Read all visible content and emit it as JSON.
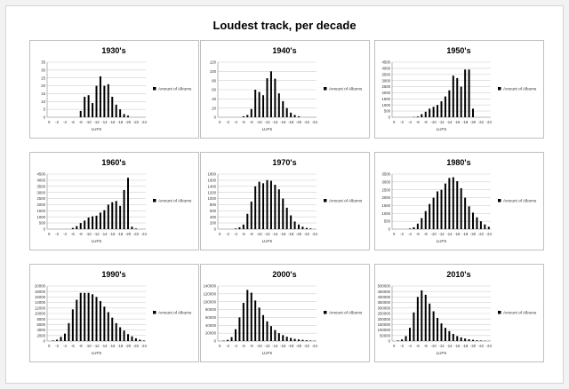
{
  "page": {
    "title": "Loudest track, per decade"
  },
  "chart_data": [
    {
      "type": "bar",
      "title": "1930's",
      "xlabel": "LUFS",
      "ylabel": "",
      "legend": "Amount of Albums",
      "legend_position": "right",
      "ylim": [
        0,
        35
      ],
      "yticks": [
        0,
        5,
        10,
        15,
        20,
        25,
        30,
        35
      ],
      "grid": true,
      "x": [
        0,
        -1,
        -2,
        -3,
        -4,
        -5,
        -6,
        -7,
        -8,
        -9,
        -10,
        -11,
        -12,
        -13,
        -14,
        -15,
        -16,
        -17,
        -18,
        -19,
        -20,
        -21,
        -22,
        -23,
        -24
      ],
      "xtick_labels": [
        "0",
        "-2",
        "-4",
        "-6",
        "-8",
        "-10",
        "-12",
        "-14",
        "-16",
        "-18",
        "-20",
        "-22",
        "-24"
      ],
      "values": [
        0,
        0,
        0,
        0,
        0,
        0,
        0,
        0,
        4,
        13,
        14,
        9,
        20,
        26,
        20,
        21,
        13,
        8,
        5,
        2,
        1,
        0,
        0,
        0,
        0
      ]
    },
    {
      "type": "bar",
      "title": "1940's",
      "xlabel": "LUFS",
      "ylabel": "",
      "legend": "Amount of Albums",
      "legend_position": "right",
      "ylim": [
        0,
        120
      ],
      "yticks": [
        0,
        20,
        40,
        60,
        80,
        100,
        120
      ],
      "grid": true,
      "x": [
        0,
        -1,
        -2,
        -3,
        -4,
        -5,
        -6,
        -7,
        -8,
        -9,
        -10,
        -11,
        -12,
        -13,
        -14,
        -15,
        -16,
        -17,
        -18,
        -19,
        -20,
        -21,
        -22,
        -23,
        -24
      ],
      "xtick_labels": [
        "0",
        "-2",
        "-4",
        "-6",
        "-8",
        "-10",
        "-12",
        "-14",
        "-16",
        "-18",
        "-20",
        "-22",
        "-24"
      ],
      "values": [
        0,
        0,
        0,
        0,
        0,
        0,
        2,
        5,
        18,
        60,
        55,
        48,
        85,
        100,
        84,
        52,
        35,
        20,
        10,
        5,
        2,
        0,
        0,
        0,
        0
      ]
    },
    {
      "type": "bar",
      "title": "1950's",
      "xlabel": "LUFS",
      "ylabel": "",
      "legend": "Amount of Albums",
      "legend_position": "right",
      "ylim": [
        0,
        4500
      ],
      "yticks": [
        0,
        500,
        1000,
        1500,
        2000,
        2500,
        3000,
        3500,
        4000,
        4500
      ],
      "grid": true,
      "x": [
        0,
        -1,
        -2,
        -3,
        -4,
        -5,
        -6,
        -7,
        -8,
        -9,
        -10,
        -11,
        -12,
        -13,
        -14,
        -15,
        -16,
        -17,
        -18,
        -19,
        -20,
        -21,
        -22,
        -23,
        -24
      ],
      "xtick_labels": [
        "0",
        "-2",
        "-4",
        "-6",
        "-8",
        "-10",
        "-12",
        "-14",
        "-16",
        "-18",
        "-20",
        "-22",
        "-24"
      ],
      "values": [
        0,
        0,
        0,
        0,
        0,
        20,
        60,
        250,
        450,
        700,
        850,
        1000,
        1300,
        1700,
        2200,
        3400,
        3200,
        2500,
        3900,
        3900,
        700,
        0,
        0,
        0,
        0
      ]
    },
    {
      "type": "bar",
      "title": "1960's",
      "xlabel": "LUFS",
      "ylabel": "",
      "legend": "Amount of Albums",
      "legend_position": "right",
      "ylim": [
        0,
        4500
      ],
      "yticks": [
        0,
        500,
        1000,
        1500,
        2000,
        2500,
        3000,
        3500,
        4000,
        4500
      ],
      "grid": true,
      "x": [
        0,
        -1,
        -2,
        -3,
        -4,
        -5,
        -6,
        -7,
        -8,
        -9,
        -10,
        -11,
        -12,
        -13,
        -14,
        -15,
        -16,
        -17,
        -18,
        -19,
        -20,
        -21,
        -22,
        -23,
        -24
      ],
      "xtick_labels": [
        "0",
        "-2",
        "-4",
        "-6",
        "-8",
        "-10",
        "-12",
        "-14",
        "-16",
        "-18",
        "-20",
        "-22",
        "-24"
      ],
      "values": [
        0,
        0,
        0,
        0,
        0,
        0,
        100,
        250,
        500,
        700,
        950,
        1050,
        1100,
        1350,
        1550,
        2000,
        2200,
        2300,
        1900,
        3200,
        4200,
        200,
        50,
        0,
        0
      ]
    },
    {
      "type": "bar",
      "title": "1970's",
      "xlabel": "LUFS",
      "ylabel": "",
      "legend": "Amount of Albums",
      "legend_position": "right",
      "ylim": [
        0,
        1800
      ],
      "yticks": [
        0,
        200,
        400,
        600,
        800,
        1000,
        1200,
        1400,
        1600,
        1800
      ],
      "grid": true,
      "x": [
        0,
        -1,
        -2,
        -3,
        -4,
        -5,
        -6,
        -7,
        -8,
        -9,
        -10,
        -11,
        -12,
        -13,
        -14,
        -15,
        -16,
        -17,
        -18,
        -19,
        -20,
        -21,
        -22,
        -23,
        -24
      ],
      "xtick_labels": [
        "0",
        "-2",
        "-4",
        "-6",
        "-8",
        "-10",
        "-12",
        "-14",
        "-16",
        "-18",
        "-20",
        "-22",
        "-24"
      ],
      "values": [
        0,
        0,
        0,
        0,
        20,
        60,
        150,
        500,
        900,
        1400,
        1550,
        1500,
        1600,
        1580,
        1450,
        1300,
        1000,
        700,
        450,
        250,
        150,
        80,
        40,
        20,
        0
      ]
    },
    {
      "type": "bar",
      "title": "1980's",
      "xlabel": "LUFS",
      "ylabel": "",
      "legend": "Amount of Albums",
      "legend_position": "right",
      "ylim": [
        0,
        3500
      ],
      "yticks": [
        0,
        500,
        1000,
        1500,
        2000,
        2500,
        3000,
        3500
      ],
      "grid": true,
      "x": [
        0,
        -1,
        -2,
        -3,
        -4,
        -5,
        -6,
        -7,
        -8,
        -9,
        -10,
        -11,
        -12,
        -13,
        -14,
        -15,
        -16,
        -17,
        -18,
        -19,
        -20,
        -21,
        -22,
        -23,
        -24
      ],
      "xtick_labels": [
        "0",
        "-2",
        "-4",
        "-6",
        "-8",
        "-10",
        "-12",
        "-14",
        "-16",
        "-18",
        "-20",
        "-22",
        "-24"
      ],
      "values": [
        0,
        0,
        0,
        0,
        40,
        120,
        350,
        700,
        1150,
        1600,
        2000,
        2400,
        2500,
        2900,
        3250,
        3300,
        3050,
        2600,
        2000,
        1450,
        1050,
        750,
        500,
        300,
        150
      ]
    },
    {
      "type": "bar",
      "title": "1990's",
      "xlabel": "LUFS",
      "ylabel": "",
      "legend": "Amount of Albums",
      "legend_position": "right",
      "ylim": [
        0,
        20000
      ],
      "yticks": [
        0,
        2000,
        4000,
        6000,
        8000,
        10000,
        12000,
        14000,
        16000,
        18000,
        20000
      ],
      "grid": true,
      "x": [
        0,
        -1,
        -2,
        -3,
        -4,
        -5,
        -6,
        -7,
        -8,
        -9,
        -10,
        -11,
        -12,
        -13,
        -14,
        -15,
        -16,
        -17,
        -18,
        -19,
        -20,
        -21,
        -22,
        -23,
        -24
      ],
      "xtick_labels": [
        "0",
        "-2",
        "-4",
        "-6",
        "-8",
        "-10",
        "-12",
        "-14",
        "-16",
        "-18",
        "-20",
        "-22",
        "-24"
      ],
      "values": [
        0,
        200,
        500,
        1500,
        2700,
        6500,
        11500,
        15000,
        17500,
        17500,
        17500,
        17000,
        16000,
        14500,
        12500,
        10500,
        8500,
        6500,
        5000,
        3800,
        2500,
        1700,
        1000,
        500,
        200
      ]
    },
    {
      "type": "bar",
      "title": "2000's",
      "xlabel": "LUFS",
      "ylabel": "",
      "legend": "Amount of Albums",
      "legend_position": "right",
      "ylim": [
        0,
        140000
      ],
      "yticks": [
        0,
        20000,
        40000,
        60000,
        80000,
        100000,
        120000,
        140000
      ],
      "grid": true,
      "x": [
        0,
        -1,
        -2,
        -3,
        -4,
        -5,
        -6,
        -7,
        -8,
        -9,
        -10,
        -11,
        -12,
        -13,
        -14,
        -15,
        -16,
        -17,
        -18,
        -19,
        -20,
        -21,
        -22,
        -23,
        -24
      ],
      "xtick_labels": [
        "0",
        "-2",
        "-4",
        "-6",
        "-8",
        "-10",
        "-12",
        "-14",
        "-16",
        "-18",
        "-20",
        "-22",
        "-24"
      ],
      "values": [
        0,
        1000,
        3000,
        10000,
        30000,
        60000,
        97000,
        130000,
        123000,
        103000,
        85000,
        66000,
        50000,
        38000,
        28000,
        20000,
        15000,
        11000,
        8000,
        5500,
        4000,
        3000,
        2000,
        1200,
        600
      ]
    },
    {
      "type": "bar",
      "title": "2010's",
      "xlabel": "LUFS",
      "ylabel": "",
      "legend": "Amount of Albums",
      "legend_position": "right",
      "ylim": [
        0,
        500000
      ],
      "yticks": [
        0,
        50000,
        100000,
        150000,
        200000,
        250000,
        300000,
        350000,
        400000,
        450000,
        500000
      ],
      "grid": true,
      "x": [
        0,
        -1,
        -2,
        -3,
        -4,
        -5,
        -6,
        -7,
        -8,
        -9,
        -10,
        -11,
        -12,
        -13,
        -14,
        -15,
        -16,
        -17,
        -18,
        -19,
        -20,
        -21,
        -22,
        -23,
        -24
      ],
      "xtick_labels": [
        "0",
        "-2",
        "-4",
        "-6",
        "-8",
        "-10",
        "-12",
        "-14",
        "-16",
        "-18",
        "-20",
        "-22",
        "-24"
      ],
      "values": [
        0,
        5000,
        15000,
        45000,
        120000,
        260000,
        400000,
        460000,
        420000,
        340000,
        270000,
        210000,
        160000,
        120000,
        90000,
        65000,
        45000,
        33000,
        23000,
        16000,
        11000,
        7000,
        4500,
        2500,
        1000
      ]
    }
  ]
}
